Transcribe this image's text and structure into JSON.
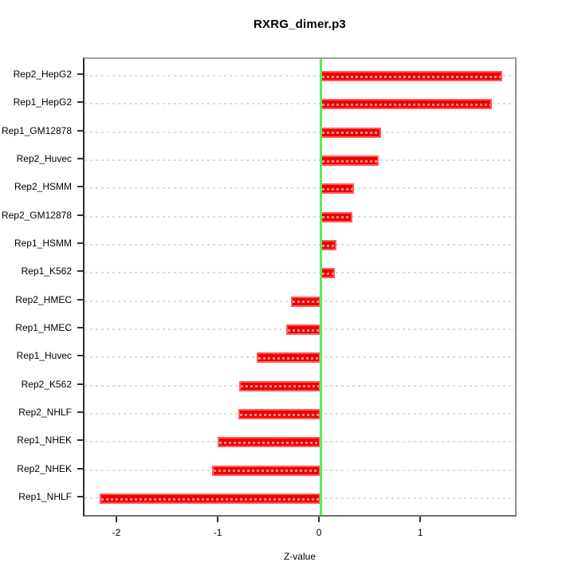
{
  "chart_data": {
    "type": "bar",
    "orientation": "horizontal",
    "title": "RXRG_dimer.p3",
    "xlabel": "Z-value",
    "ylabel": "",
    "categories": [
      "Rep2_HepG2",
      "Rep1_HepG2",
      "Rep1_GM12878",
      "Rep2_Huvec",
      "Rep2_HSMM",
      "Rep2_GM12878",
      "Rep1_HSMM",
      "Rep1_K562",
      "Rep2_HMEC",
      "Rep1_HMEC",
      "Rep1_Huvec",
      "Rep2_K562",
      "Rep2_NHLF",
      "Rep1_NHEK",
      "Rep2_NHEK",
      "Rep1_NHLF"
    ],
    "values": [
      1.79,
      1.69,
      0.6,
      0.57,
      0.33,
      0.31,
      0.16,
      0.14,
      -0.29,
      -0.34,
      -0.63,
      -0.8,
      -0.81,
      -1.02,
      -1.07,
      -2.18
    ],
    "xlim": [
      -2.33,
      1.95
    ],
    "xticks": [
      -2,
      -1,
      0,
      1
    ],
    "xtick_labels": [
      "-2",
      "-1",
      "0",
      "1"
    ],
    "grid": true,
    "legend_position": "none",
    "colors": {
      "bar_fill": "#ee0000",
      "bar_edge": "#ff5c5c",
      "zero_line": "#55ee55",
      "gridline": "#dcdcdc",
      "axis_text": "#000000"
    }
  }
}
